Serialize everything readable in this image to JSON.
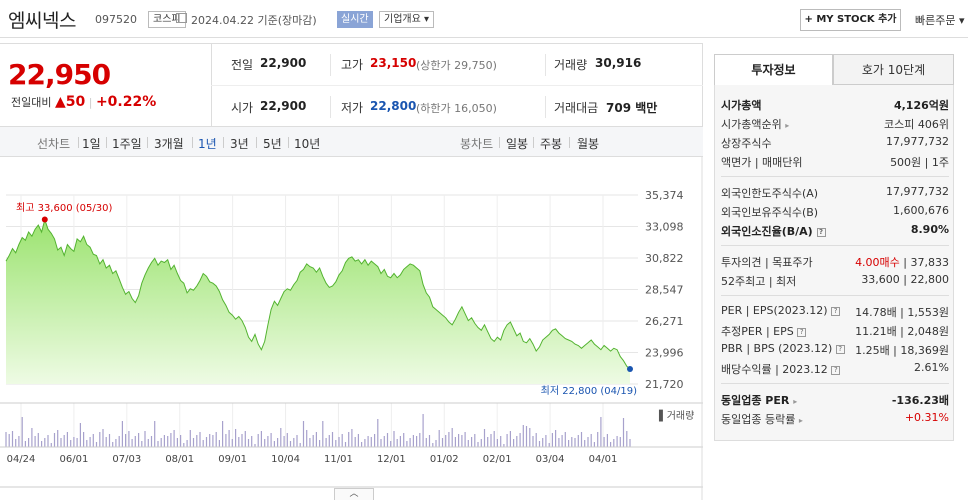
{
  "header": {
    "name": "엠씨넥스",
    "code": "097520",
    "market": "코스피",
    "date": "2024.04.22 기준(장마감)",
    "live": "실시간",
    "overview": "기업개요",
    "mystock": "+ MY STOCK 추가",
    "fastorder": "빠른주문"
  },
  "price": {
    "current": "22,950",
    "change_label": "전일대비",
    "change": "▲50",
    "change_pct": "+0.22%",
    "prev_label": "전일",
    "prev": "22,900",
    "open_label": "시가",
    "open": "22,900",
    "high_label": "고가",
    "high": "23,150",
    "upper_limit": "(상한가 29,750)",
    "low_label": "저가",
    "low": "22,800",
    "lower_limit": "(하한가 16,050)",
    "volume_label": "거래량",
    "volume": "30,916",
    "amount_label": "거래대금",
    "amount": "709 백만"
  },
  "periods": {
    "line_label": "선차트",
    "line": [
      "1일",
      "1주일",
      "3개월",
      "1년",
      "3년",
      "5년",
      "10년"
    ],
    "active": "1년",
    "candle_label": "봉차트",
    "candle": [
      "일봉",
      "주봉",
      "월봉"
    ]
  },
  "chart_data": {
    "type": "area",
    "y_ticks": [
      "35,374",
      "33,098",
      "30,822",
      "28,547",
      "26,271",
      "23,996",
      "21,720"
    ],
    "ylim": [
      21720,
      35374
    ],
    "x_ticks": [
      "04/24",
      "06/01",
      "07/03",
      "08/01",
      "09/01",
      "10/04",
      "11/01",
      "12/01",
      "01/02",
      "02/01",
      "03/04",
      "04/01"
    ],
    "high_label": "최고 33,600 (05/30)",
    "low_label": "최저 22,800 (04/19)",
    "volume_label": "거래량",
    "values": [
      30600,
      31000,
      31500,
      31200,
      31800,
      32300,
      32100,
      32700,
      32400,
      32900,
      33200,
      32700,
      33600,
      32900,
      32600,
      32200,
      31400,
      31600,
      31000,
      31800,
      31500,
      31300,
      32200,
      32000,
      32400,
      31800,
      31600,
      31100,
      31000,
      30400,
      30700,
      30100,
      30300,
      29700,
      29900,
      29300,
      28700,
      28200,
      28400,
      27900,
      27600,
      28100,
      29000,
      29600,
      30100,
      30500,
      30800,
      30300,
      30600,
      30500,
      30700,
      30000,
      30300,
      29700,
      29200,
      29000,
      28300,
      28600,
      28500,
      28800,
      29200,
      29700,
      29500,
      29100,
      29000,
      28800,
      28400,
      27800,
      27400,
      26900,
      26700,
      26400,
      26600,
      26300,
      25800,
      25100,
      24800,
      25300,
      24600,
      24200,
      24800,
      26000,
      27100,
      27700,
      27400,
      27900,
      28400,
      28600,
      28500,
      28900,
      29200,
      29800,
      30000,
      30400,
      30200,
      30100,
      29800,
      30100,
      29500,
      29000,
      28700,
      28800,
      29100,
      29600,
      29900,
      30500,
      30800,
      30900,
      30600,
      30700,
      30400,
      30700,
      30300,
      30600,
      30400,
      30200,
      29700,
      30000,
      29500,
      29400,
      29700,
      29400,
      29600,
      30000,
      30200,
      30400,
      30300,
      30100,
      29900,
      28900,
      28300,
      28000,
      27300,
      27100,
      26900,
      26700,
      26500,
      26200,
      26000,
      26400,
      26900,
      27300,
      26800,
      26300,
      26500,
      26100,
      25800,
      25600,
      26000,
      25500,
      25000,
      24800,
      25100,
      24900,
      25600,
      26000,
      26200,
      25700,
      25200,
      25400,
      24800,
      24700,
      25000,
      24600,
      24100,
      24400,
      24900,
      25100,
      25300,
      25600,
      25700,
      25400,
      25200,
      25000,
      24900,
      24800,
      24600,
      24500,
      24300,
      24500,
      24700,
      24900,
      24600,
      24400,
      24200,
      24500,
      24300,
      24100,
      24300,
      24200,
      23700,
      23400,
      23000,
      22800
    ]
  },
  "sidebar": {
    "tab_info": "투자정보",
    "tab_quote": "호가 10단계",
    "market_cap_label": "시가총액",
    "market_cap": "4,126억원",
    "rank_label": "시가총액순위",
    "rank": "코스피 406위",
    "shares_label": "상장주식수",
    "shares": "17,977,732",
    "par_label": "액면가 | 매매단위",
    "par": "500원 | 1주",
    "foreign_limit_label": "외국인한도주식수(A)",
    "foreign_limit": "17,977,732",
    "foreign_hold_label": "외국인보유주식수(B)",
    "foreign_hold": "1,600,676",
    "foreign_ratio_label": "외국인소진율(B/A)",
    "foreign_ratio": "8.90%",
    "opinion_label": "투자의견 | 목표주가",
    "opinion": "4.00매수",
    "target": "| 37,833",
    "wk52_label": "52주최고 | 최저",
    "wk52": "33,600 | 22,800",
    "per_label": "PER | EPS(2023.12)",
    "per": "14.78배 | 1,553원",
    "est_label": "추정PER | EPS",
    "est": "11.21배 | 2,048원",
    "pbr_label": "PBR | BPS (2023.12)",
    "pbr": "1.25배 | 18,369원",
    "div_label": "배당수익률 | 2023.12",
    "div": "2.61%",
    "ind_per_label": "동일업종 PER",
    "ind_per": "-136.23배",
    "ind_rate_label": "동일업종 등락률",
    "ind_rate": "+0.31%"
  }
}
